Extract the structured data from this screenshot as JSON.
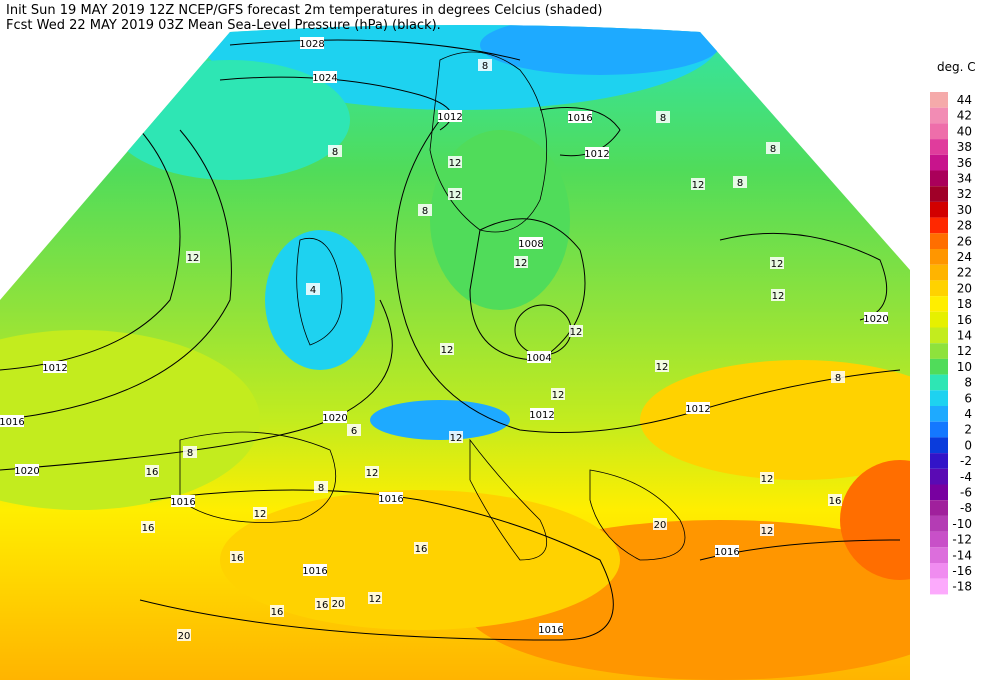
{
  "header": {
    "lines": [
      "Init  Sun 19 MAY 2019 12Z  NCEP/GFS forecast 2m temperatures in degrees Celcius (shaded)",
      "Fcst Wed 22 MAY 2019 03Z  Mean Sea-Level Pressure (hPa) (black)."
    ]
  },
  "legend": {
    "title": "deg. C",
    "items": [
      {
        "label": "44",
        "color": "#f5aaaa"
      },
      {
        "label": "42",
        "color": "#f28cb4"
      },
      {
        "label": "40",
        "color": "#ee6eaa"
      },
      {
        "label": "38",
        "color": "#e03c9c"
      },
      {
        "label": "36",
        "color": "#c8148c"
      },
      {
        "label": "34",
        "color": "#aa005a"
      },
      {
        "label": "32",
        "color": "#a00028"
      },
      {
        "label": "30",
        "color": "#d20000"
      },
      {
        "label": "28",
        "color": "#ff2800"
      },
      {
        "label": "26",
        "color": "#ff6e00"
      },
      {
        "label": "24",
        "color": "#ff9600"
      },
      {
        "label": "22",
        "color": "#ffb400"
      },
      {
        "label": "20",
        "color": "#ffd200"
      },
      {
        "label": "18",
        "color": "#ffee00"
      },
      {
        "label": "16",
        "color": "#e6f000"
      },
      {
        "label": "14",
        "color": "#c3ec1e"
      },
      {
        "label": "12",
        "color": "#8ee23c"
      },
      {
        "label": "10",
        "color": "#50dc5a"
      },
      {
        "label": "8",
        "color": "#2ee6b4"
      },
      {
        "label": "6",
        "color": "#1ed2f0"
      },
      {
        "label": "4",
        "color": "#1eaaff"
      },
      {
        "label": "2",
        "color": "#1478ff"
      },
      {
        "label": "0",
        "color": "#0a3cdc"
      },
      {
        "label": "-2",
        "color": "#3214c8"
      },
      {
        "label": "-4",
        "color": "#5a0ab4"
      },
      {
        "label": "-6",
        "color": "#7800a0"
      },
      {
        "label": "-8",
        "color": "#a0209c"
      },
      {
        "label": "-10",
        "color": "#b43cb4"
      },
      {
        "label": "-12",
        "color": "#c850c8"
      },
      {
        "label": "-14",
        "color": "#dc6edc"
      },
      {
        "label": "-16",
        "color": "#f08cf0"
      },
      {
        "label": "-18",
        "color": "#fcaafc"
      }
    ]
  },
  "isobar_labels": [
    "1028",
    "1024",
    "1012",
    "1016",
    "1012",
    "1008",
    "1004",
    "1012",
    "1020",
    "1012",
    "1012",
    "1016",
    "1020",
    "1020",
    "1016",
    "1016",
    "1016",
    "1016",
    "1016"
  ],
  "temperature_labels": [
    "8",
    "8",
    "8",
    "8",
    "12",
    "12",
    "8",
    "12",
    "8",
    "12",
    "12",
    "12",
    "12",
    "4",
    "12",
    "12",
    "12",
    "8",
    "12",
    "6",
    "12",
    "12",
    "16",
    "8",
    "8",
    "12",
    "16",
    "16",
    "16",
    "20",
    "12",
    "12",
    "16",
    "16",
    "16",
    "20",
    "12",
    "20"
  ]
}
